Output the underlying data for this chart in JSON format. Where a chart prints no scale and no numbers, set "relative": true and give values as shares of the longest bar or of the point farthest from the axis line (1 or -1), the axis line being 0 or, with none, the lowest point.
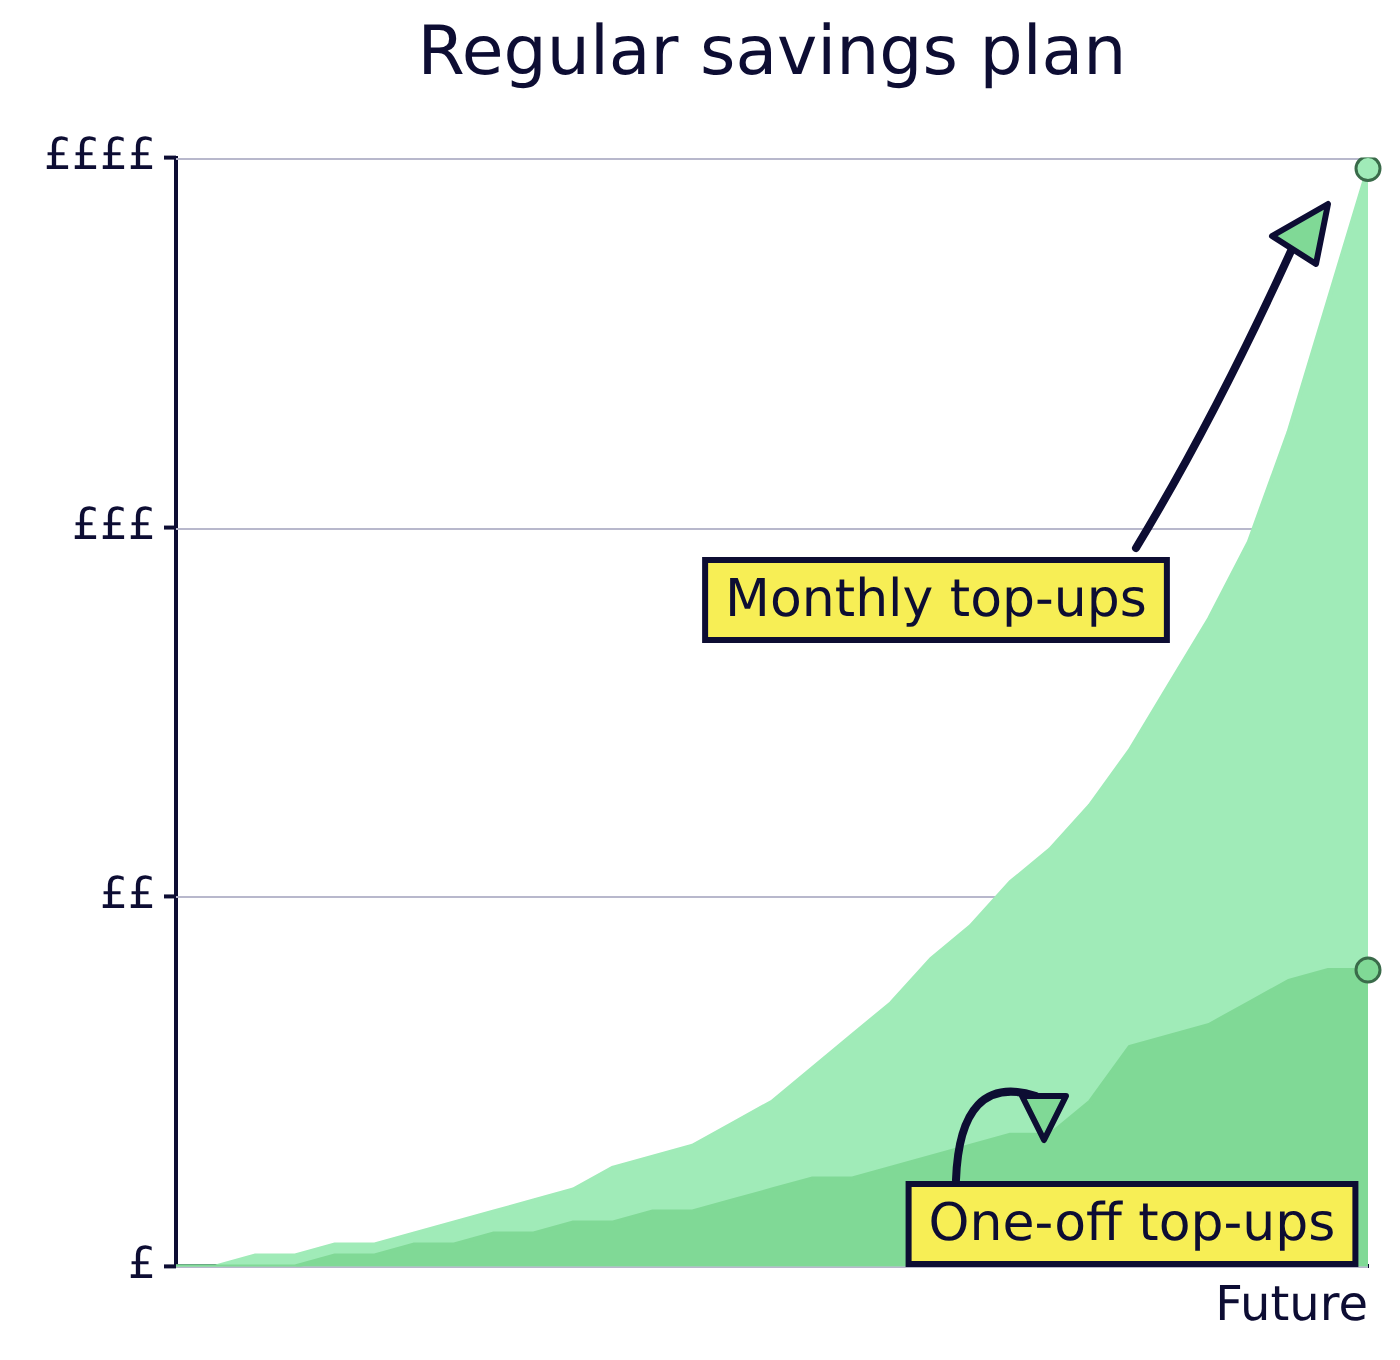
{
  "chart_data": {
    "type": "area",
    "title": "Regular savings plan",
    "xlabel": "Future",
    "relative": true,
    "categories": [
      null,
      null,
      null,
      null,
      null,
      null,
      null,
      null,
      null,
      null,
      null,
      null,
      null,
      null,
      null,
      null,
      null,
      null,
      null,
      null,
      null,
      null,
      null,
      null,
      null,
      null,
      null,
      null,
      null,
      null,
      null
    ],
    "ref_lines": [
      {
        "axis": "y",
        "value": 0,
        "label": "£"
      },
      {
        "axis": "y",
        "value": 0.337,
        "label": "££"
      },
      {
        "axis": "y",
        "value": 0.673,
        "label": "£££"
      },
      {
        "axis": "y",
        "value": 1.01,
        "label": "££££"
      }
    ],
    "legend": false,
    "series": [
      {
        "name": "Monthly top-ups",
        "color": "#a0ebb8",
        "values": [
          0,
          0,
          0.01,
          0.01,
          0.02,
          0.02,
          0.03,
          0.04,
          0.05,
          0.06,
          0.07,
          0.09,
          0.1,
          0.11,
          0.13,
          0.15,
          0.18,
          0.21,
          0.24,
          0.28,
          0.31,
          0.35,
          0.38,
          0.42,
          0.47,
          0.53,
          0.59,
          0.66,
          0.76,
          0.88,
          1
        ]
      },
      {
        "name": "One-off top-ups",
        "color": "#80d996",
        "values": [
          0,
          0,
          0,
          0,
          0.01,
          0.01,
          0.02,
          0.02,
          0.03,
          0.03,
          0.04,
          0.04,
          0.05,
          0.05,
          0.06,
          0.07,
          0.08,
          0.08,
          0.09,
          0.1,
          0.11,
          0.12,
          0.12,
          0.15,
          0.2,
          0.21,
          0.22,
          0.24,
          0.26,
          0.27,
          0.27
        ]
      }
    ]
  }
}
